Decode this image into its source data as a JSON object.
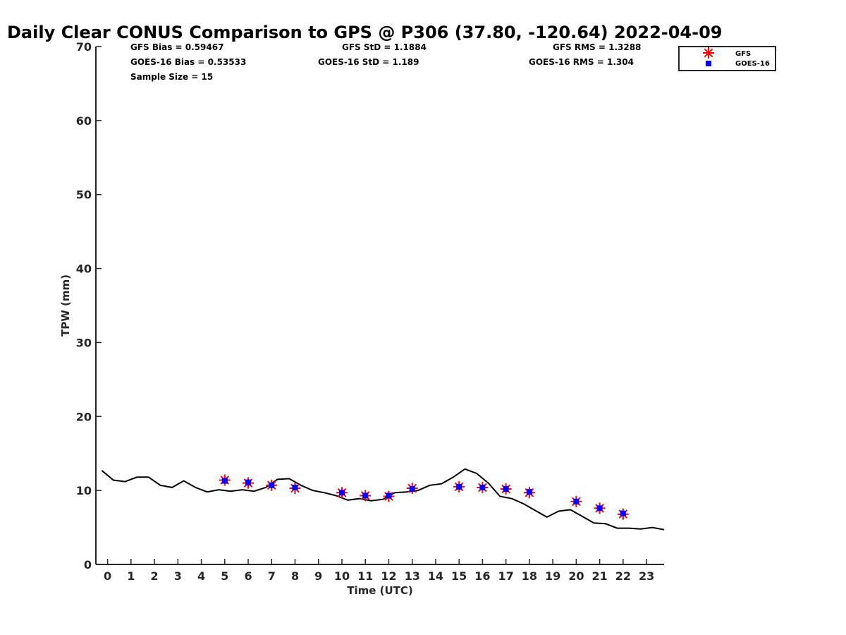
{
  "chart_data": {
    "type": "scatter",
    "title": "Daily Clear CONUS Comparison to GPS @ P306 (37.80, -120.64) 2022-04-09",
    "xlabel": "Time (UTC)",
    "ylabel": "TPW (mm)",
    "xlim": [
      -0.5,
      23.75
    ],
    "ylim": [
      0,
      70
    ],
    "x_ticks": [
      "0",
      "1",
      "2",
      "3",
      "4",
      "5",
      "6",
      "7",
      "8",
      "9",
      "10",
      "11",
      "12",
      "13",
      "14",
      "15",
      "16",
      "17",
      "18",
      "19",
      "20",
      "21",
      "22",
      "23"
    ],
    "y_ticks": [
      "0",
      "10",
      "20",
      "30",
      "40",
      "50",
      "60",
      "70"
    ],
    "grid": false,
    "legend_position": "top-right",
    "stats": {
      "gfs_bias": "GFS Bias = 0.59467",
      "gfs_std": "GFS StD = 1.1884",
      "gfs_rms": "GFS RMS = 1.3288",
      "goes_bias": "GOES-16 Bias = 0.53533",
      "goes_std": "GOES-16 StD = 1.189",
      "goes_rms": "GOES-16 RMS = 1.304",
      "sample_size": "Sample Size = 15"
    },
    "series": [
      {
        "name": "GFS",
        "marker": "asterisk",
        "color": "#ff0000",
        "x": [
          5,
          6,
          7,
          8,
          10,
          11,
          12,
          13,
          15,
          16,
          17,
          18,
          20,
          21,
          22
        ],
        "y": [
          11.4,
          11.0,
          10.7,
          10.3,
          9.7,
          9.3,
          9.2,
          10.3,
          10.5,
          10.4,
          10.2,
          9.7,
          8.5,
          7.6,
          6.8
        ]
      },
      {
        "name": "GOES-16",
        "marker": "square",
        "color": "#0000ff",
        "x": [
          5,
          6,
          7,
          8,
          10,
          11,
          12,
          13,
          15,
          16,
          17,
          18,
          20,
          21,
          22
        ],
        "y": [
          11.3,
          11.1,
          10.7,
          10.4,
          9.7,
          9.3,
          9.3,
          10.2,
          10.5,
          10.4,
          10.2,
          9.8,
          8.5,
          7.6,
          6.9
        ]
      },
      {
        "type": "line",
        "color": "#000000",
        "x": [
          -0.25,
          0.25,
          0.75,
          1.25,
          1.75,
          2.25,
          2.75,
          3.25,
          3.75,
          4.25,
          4.75,
          5.25,
          5.75,
          6.25,
          6.75,
          7.25,
          7.75,
          8.25,
          8.75,
          9.25,
          9.75,
          10.25,
          10.75,
          11.25,
          11.75,
          12.25,
          12.75,
          13.25,
          13.75,
          14.25,
          14.75,
          15.25,
          15.75,
          16.25,
          16.75,
          17.25,
          17.75,
          18.25,
          18.75,
          19.25,
          19.75,
          20.25,
          20.75,
          21.25,
          21.75,
          22.25,
          22.75,
          23.25,
          23.75
        ],
        "y": [
          12.7,
          11.4,
          11.2,
          11.8,
          11.8,
          10.7,
          10.4,
          11.3,
          10.4,
          9.8,
          10.1,
          9.9,
          10.1,
          9.9,
          10.4,
          11.5,
          11.6,
          10.7,
          10.0,
          9.7,
          9.3,
          8.7,
          8.9,
          8.6,
          8.8,
          9.7,
          9.8,
          10.0,
          10.7,
          10.9,
          11.8,
          12.9,
          12.3,
          11.0,
          9.2,
          8.9,
          8.2,
          7.3,
          6.4,
          7.2,
          7.4,
          6.5,
          5.6,
          5.5,
          4.9,
          4.9,
          4.8,
          5.0,
          4.7
        ]
      }
    ]
  }
}
